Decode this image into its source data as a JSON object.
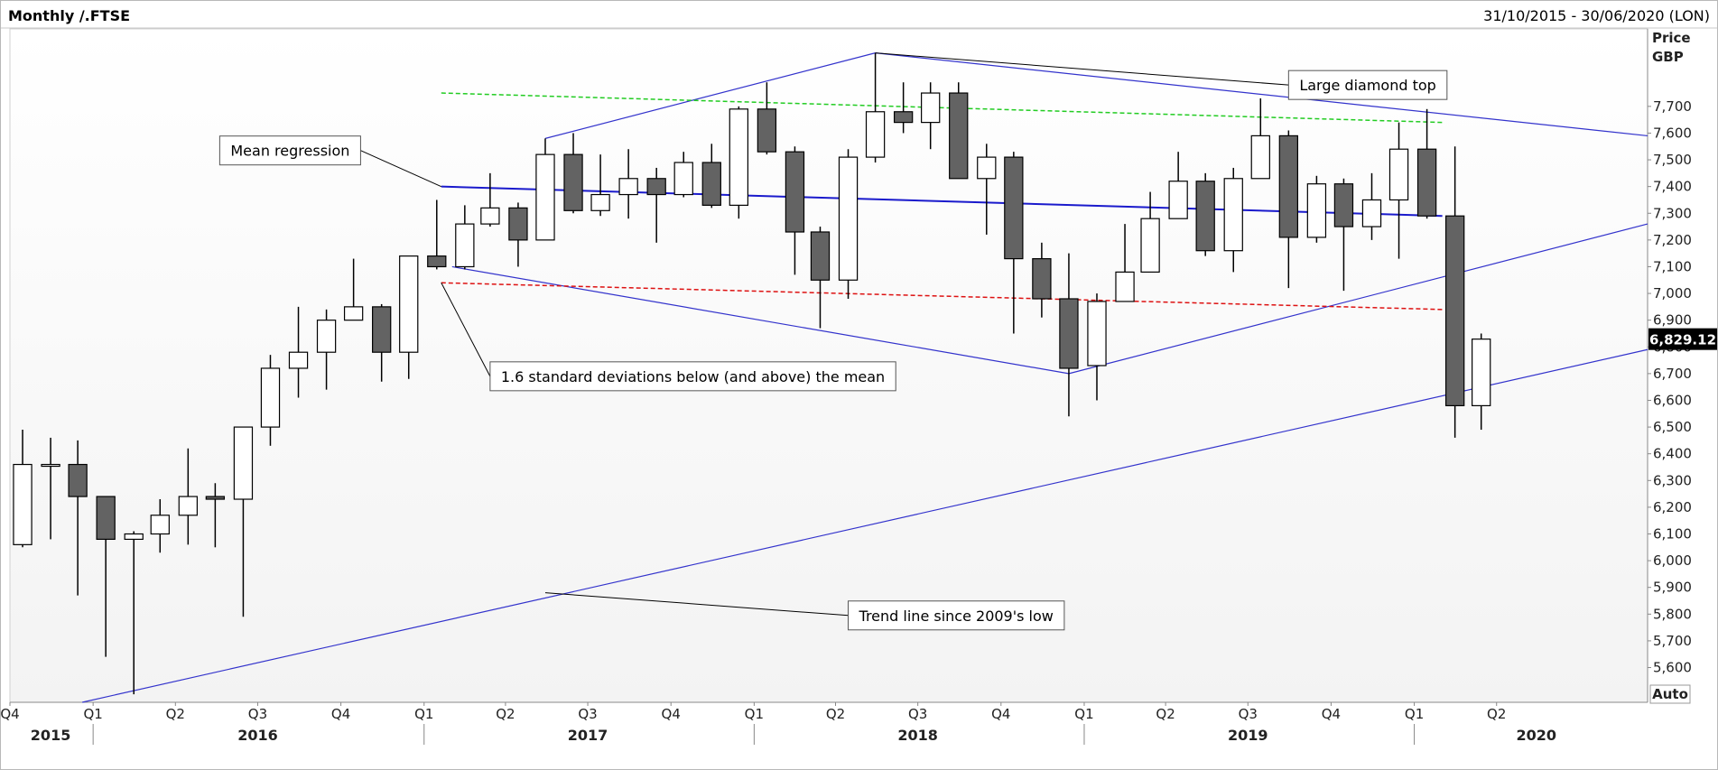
{
  "header": {
    "title": "Monthly /.FTSE",
    "date_range": "31/10/2015 - 30/06/2020 (LON)"
  },
  "axis": {
    "price_label": "Price",
    "currency_label": "GBP",
    "auto_label": "Auto"
  },
  "chart_data": {
    "type": "candlestick",
    "ylim": [
      5470,
      7990
    ],
    "y_ticks": [
      5600,
      5700,
      5800,
      5900,
      6000,
      6100,
      6200,
      6300,
      6400,
      6500,
      6600,
      6700,
      6800,
      6900,
      7000,
      7100,
      7200,
      7300,
      7400,
      7500,
      7600,
      7700
    ],
    "y_tick_labels": [
      "5,600",
      "5,700",
      "5,800",
      "5,900",
      "6,000",
      "6,100",
      "6,200",
      "6,300",
      "6,400",
      "6,500",
      "6,600",
      "6,700",
      "6,800",
      "6,900",
      "7,000",
      "7,100",
      "7,200",
      "7,300",
      "7,400",
      "7,500",
      "7,600",
      "7,700"
    ],
    "x_range": [
      "2015-10-01",
      "2020-09-15"
    ],
    "quarter_ticks": [
      {
        "label": "Q4",
        "date": "2015-10-01"
      },
      {
        "label": "Q1",
        "date": "2016-01-01"
      },
      {
        "label": "Q2",
        "date": "2016-04-01"
      },
      {
        "label": "Q3",
        "date": "2016-07-01"
      },
      {
        "label": "Q4",
        "date": "2016-10-01"
      },
      {
        "label": "Q1",
        "date": "2017-01-01"
      },
      {
        "label": "Q2",
        "date": "2017-04-01"
      },
      {
        "label": "Q3",
        "date": "2017-07-01"
      },
      {
        "label": "Q4",
        "date": "2017-10-01"
      },
      {
        "label": "Q1",
        "date": "2018-01-01"
      },
      {
        "label": "Q2",
        "date": "2018-04-01"
      },
      {
        "label": "Q3",
        "date": "2018-07-01"
      },
      {
        "label": "Q4",
        "date": "2018-10-01"
      },
      {
        "label": "Q1",
        "date": "2019-01-01"
      },
      {
        "label": "Q2",
        "date": "2019-04-01"
      },
      {
        "label": "Q3",
        "date": "2019-07-01"
      },
      {
        "label": "Q4",
        "date": "2019-10-01"
      },
      {
        "label": "Q1",
        "date": "2020-01-01"
      },
      {
        "label": "Q2",
        "date": "2020-04-01"
      }
    ],
    "year_labels": [
      {
        "label": "2015",
        "date": "2015-11-15"
      },
      {
        "label": "2016",
        "date": "2016-07-01"
      },
      {
        "label": "2017",
        "date": "2017-07-01"
      },
      {
        "label": "2018",
        "date": "2018-07-01"
      },
      {
        "label": "2019",
        "date": "2019-07-01"
      },
      {
        "label": "2020",
        "date": "2020-05-15"
      }
    ],
    "year_separators": [
      "2016-01-01",
      "2017-01-01",
      "2018-01-01",
      "2019-01-01",
      "2020-01-01"
    ],
    "candles": [
      {
        "date": "2015-10",
        "open": 6060,
        "high": 6490,
        "low": 6050,
        "close": 6360
      },
      {
        "date": "2015-11",
        "open": 6360,
        "high": 6460,
        "low": 6080,
        "close": 6360
      },
      {
        "date": "2015-12",
        "open": 6360,
        "high": 6450,
        "low": 5870,
        "close": 6240
      },
      {
        "date": "2016-01",
        "open": 6240,
        "high": 6240,
        "low": 5640,
        "close": 6080
      },
      {
        "date": "2016-02",
        "open": 6080,
        "high": 6110,
        "low": 5500,
        "close": 6100
      },
      {
        "date": "2016-03",
        "open": 6100,
        "high": 6230,
        "low": 6030,
        "close": 6170
      },
      {
        "date": "2016-04",
        "open": 6170,
        "high": 6420,
        "low": 6060,
        "close": 6240
      },
      {
        "date": "2016-05",
        "open": 6240,
        "high": 6290,
        "low": 6050,
        "close": 6230
      },
      {
        "date": "2016-06",
        "open": 6230,
        "high": 6500,
        "low": 5790,
        "close": 6500
      },
      {
        "date": "2016-07",
        "open": 6500,
        "high": 6770,
        "low": 6430,
        "close": 6720
      },
      {
        "date": "2016-08",
        "open": 6720,
        "high": 6950,
        "low": 6610,
        "close": 6780
      },
      {
        "date": "2016-09",
        "open": 6780,
        "high": 6940,
        "low": 6640,
        "close": 6900
      },
      {
        "date": "2016-10",
        "open": 6900,
        "high": 7130,
        "low": 6900,
        "close": 6950
      },
      {
        "date": "2016-11",
        "open": 6950,
        "high": 6960,
        "low": 6670,
        "close": 6780
      },
      {
        "date": "2016-12",
        "open": 6780,
        "high": 7140,
        "low": 6680,
        "close": 7140
      },
      {
        "date": "2017-01",
        "open": 7140,
        "high": 7350,
        "low": 7090,
        "close": 7100
      },
      {
        "date": "2017-02",
        "open": 7100,
        "high": 7330,
        "low": 7090,
        "close": 7260
      },
      {
        "date": "2017-03",
        "open": 7260,
        "high": 7450,
        "low": 7250,
        "close": 7320
      },
      {
        "date": "2017-04",
        "open": 7320,
        "high": 7340,
        "low": 7100,
        "close": 7200
      },
      {
        "date": "2017-05",
        "open": 7200,
        "high": 7580,
        "low": 7200,
        "close": 7520
      },
      {
        "date": "2017-06",
        "open": 7520,
        "high": 7600,
        "low": 7300,
        "close": 7310
      },
      {
        "date": "2017-07",
        "open": 7310,
        "high": 7520,
        "low": 7290,
        "close": 7370
      },
      {
        "date": "2017-08",
        "open": 7370,
        "high": 7540,
        "low": 7280,
        "close": 7430
      },
      {
        "date": "2017-09",
        "open": 7430,
        "high": 7470,
        "low": 7190,
        "close": 7370
      },
      {
        "date": "2017-10",
        "open": 7370,
        "high": 7530,
        "low": 7360,
        "close": 7490
      },
      {
        "date": "2017-11",
        "open": 7490,
        "high": 7560,
        "low": 7320,
        "close": 7330
      },
      {
        "date": "2017-12",
        "open": 7330,
        "high": 7700,
        "low": 7280,
        "close": 7690
      },
      {
        "date": "2018-01",
        "open": 7690,
        "high": 7790,
        "low": 7520,
        "close": 7530
      },
      {
        "date": "2018-02",
        "open": 7530,
        "high": 7550,
        "low": 7070,
        "close": 7230
      },
      {
        "date": "2018-03",
        "open": 7230,
        "high": 7250,
        "low": 6870,
        "close": 7050
      },
      {
        "date": "2018-04",
        "open": 7050,
        "high": 7540,
        "low": 6980,
        "close": 7510
      },
      {
        "date": "2018-05",
        "open": 7510,
        "high": 7900,
        "low": 7490,
        "close": 7680
      },
      {
        "date": "2018-06",
        "open": 7680,
        "high": 7790,
        "low": 7600,
        "close": 7640
      },
      {
        "date": "2018-07",
        "open": 7640,
        "high": 7790,
        "low": 7540,
        "close": 7750
      },
      {
        "date": "2018-08",
        "open": 7750,
        "high": 7790,
        "low": 7430,
        "close": 7430
      },
      {
        "date": "2018-09",
        "open": 7430,
        "high": 7560,
        "low": 7220,
        "close": 7510
      },
      {
        "date": "2018-10",
        "open": 7510,
        "high": 7530,
        "low": 6850,
        "close": 7130
      },
      {
        "date": "2018-11",
        "open": 7130,
        "high": 7190,
        "low": 6910,
        "close": 6980
      },
      {
        "date": "2018-12",
        "open": 6980,
        "high": 7150,
        "low": 6540,
        "close": 6720
      },
      {
        "date": "2019-01",
        "open": 6730,
        "high": 7000,
        "low": 6600,
        "close": 6970
      },
      {
        "date": "2019-02",
        "open": 6970,
        "high": 7260,
        "low": 6970,
        "close": 7080
      },
      {
        "date": "2019-03",
        "open": 7080,
        "high": 7380,
        "low": 7080,
        "close": 7280
      },
      {
        "date": "2019-04",
        "open": 7280,
        "high": 7530,
        "low": 7280,
        "close": 7420
      },
      {
        "date": "2019-05",
        "open": 7420,
        "high": 7450,
        "low": 7140,
        "close": 7160
      },
      {
        "date": "2019-06",
        "open": 7160,
        "high": 7470,
        "low": 7080,
        "close": 7430
      },
      {
        "date": "2019-07",
        "open": 7430,
        "high": 7730,
        "low": 7430,
        "close": 7590
      },
      {
        "date": "2019-08",
        "open": 7590,
        "high": 7610,
        "low": 7020,
        "close": 7210
      },
      {
        "date": "2019-09",
        "open": 7210,
        "high": 7440,
        "low": 7190,
        "close": 7410
      },
      {
        "date": "2019-10",
        "open": 7410,
        "high": 7430,
        "low": 7010,
        "close": 7250
      },
      {
        "date": "2019-11",
        "open": 7250,
        "high": 7450,
        "low": 7200,
        "close": 7350
      },
      {
        "date": "2019-12",
        "open": 7350,
        "high": 7640,
        "low": 7130,
        "close": 7540
      },
      {
        "date": "2020-01",
        "open": 7540,
        "high": 7690,
        "low": 7280,
        "close": 7290
      },
      {
        "date": "2020-02",
        "open": 7290,
        "high": 7550,
        "low": 6460,
        "close": 6580
      },
      {
        "date": "2020-03",
        "open": 6580,
        "high": 6850,
        "low": 6490,
        "close": 6829.12
      }
    ],
    "last_price_label": "6,829.12",
    "last_price_value": 6829.12,
    "lines": [
      {
        "name": "diamond-upper-left",
        "color": "#3333cc",
        "width": 1.2,
        "dash": "",
        "from": [
          "2017-05-15",
          7580
        ],
        "to": [
          "2018-05-15",
          7900
        ]
      },
      {
        "name": "diamond-upper-right",
        "color": "#3333cc",
        "width": 1.2,
        "dash": "",
        "from": [
          "2018-05-15",
          7900
        ],
        "to": [
          "2020-09-15",
          7590
        ]
      },
      {
        "name": "diamond-lower-left",
        "color": "#3333cc",
        "width": 1.2,
        "dash": "",
        "from": [
          "2017-02-01",
          7100
        ],
        "to": [
          "2018-12-15",
          6700
        ]
      },
      {
        "name": "diamond-lower-right",
        "color": "#3333cc",
        "width": 1.2,
        "dash": "",
        "from": [
          "2018-12-15",
          6700
        ],
        "to": [
          "2020-09-15",
          7260
        ]
      },
      {
        "name": "trend-line-2009",
        "color": "#3333cc",
        "width": 1.2,
        "dash": "",
        "from": [
          "2015-12-20",
          5470
        ],
        "to": [
          "2020-09-15",
          6790
        ]
      },
      {
        "name": "mean-regression-line",
        "color": "#1a1acc",
        "width": 2,
        "dash": "",
        "from": [
          "2017-01-20",
          7400
        ],
        "to": [
          "2020-02-01",
          7290
        ]
      },
      {
        "name": "upper-std-dev-line",
        "color": "#22cc22",
        "width": 1.5,
        "dash": "5,3",
        "from": [
          "2017-01-20",
          7750
        ],
        "to": [
          "2020-02-01",
          7640
        ]
      },
      {
        "name": "lower-std-dev-line",
        "color": "#dd1111",
        "width": 1.5,
        "dash": "5,3",
        "from": [
          "2017-01-20",
          7040
        ],
        "to": [
          "2020-02-01",
          6940
        ]
      }
    ],
    "annotations": [
      {
        "name": "annotation-mean-regression",
        "text": "Mean regression",
        "box_date": "2016-05-20",
        "box_value": 7535,
        "point_date": "2017-01-20",
        "point_value": 7400
      },
      {
        "name": "annotation-std-dev",
        "text": "1.6 standard deviations below (and above) the mean",
        "box_date": "2017-03-15",
        "box_value": 6690,
        "point_date": "2017-01-20",
        "point_value": 7040
      },
      {
        "name": "annotation-trend-line",
        "text": "Trend line since 2009's low",
        "box_date": "2018-04-15",
        "box_value": 5795,
        "point_date": "2017-05-15",
        "point_value": 5880
      },
      {
        "name": "annotation-diamond-top",
        "text": "Large diamond top",
        "box_date": "2019-08-15",
        "box_value": 7780,
        "point_date": "2018-05-15",
        "point_value": 7900
      }
    ]
  }
}
